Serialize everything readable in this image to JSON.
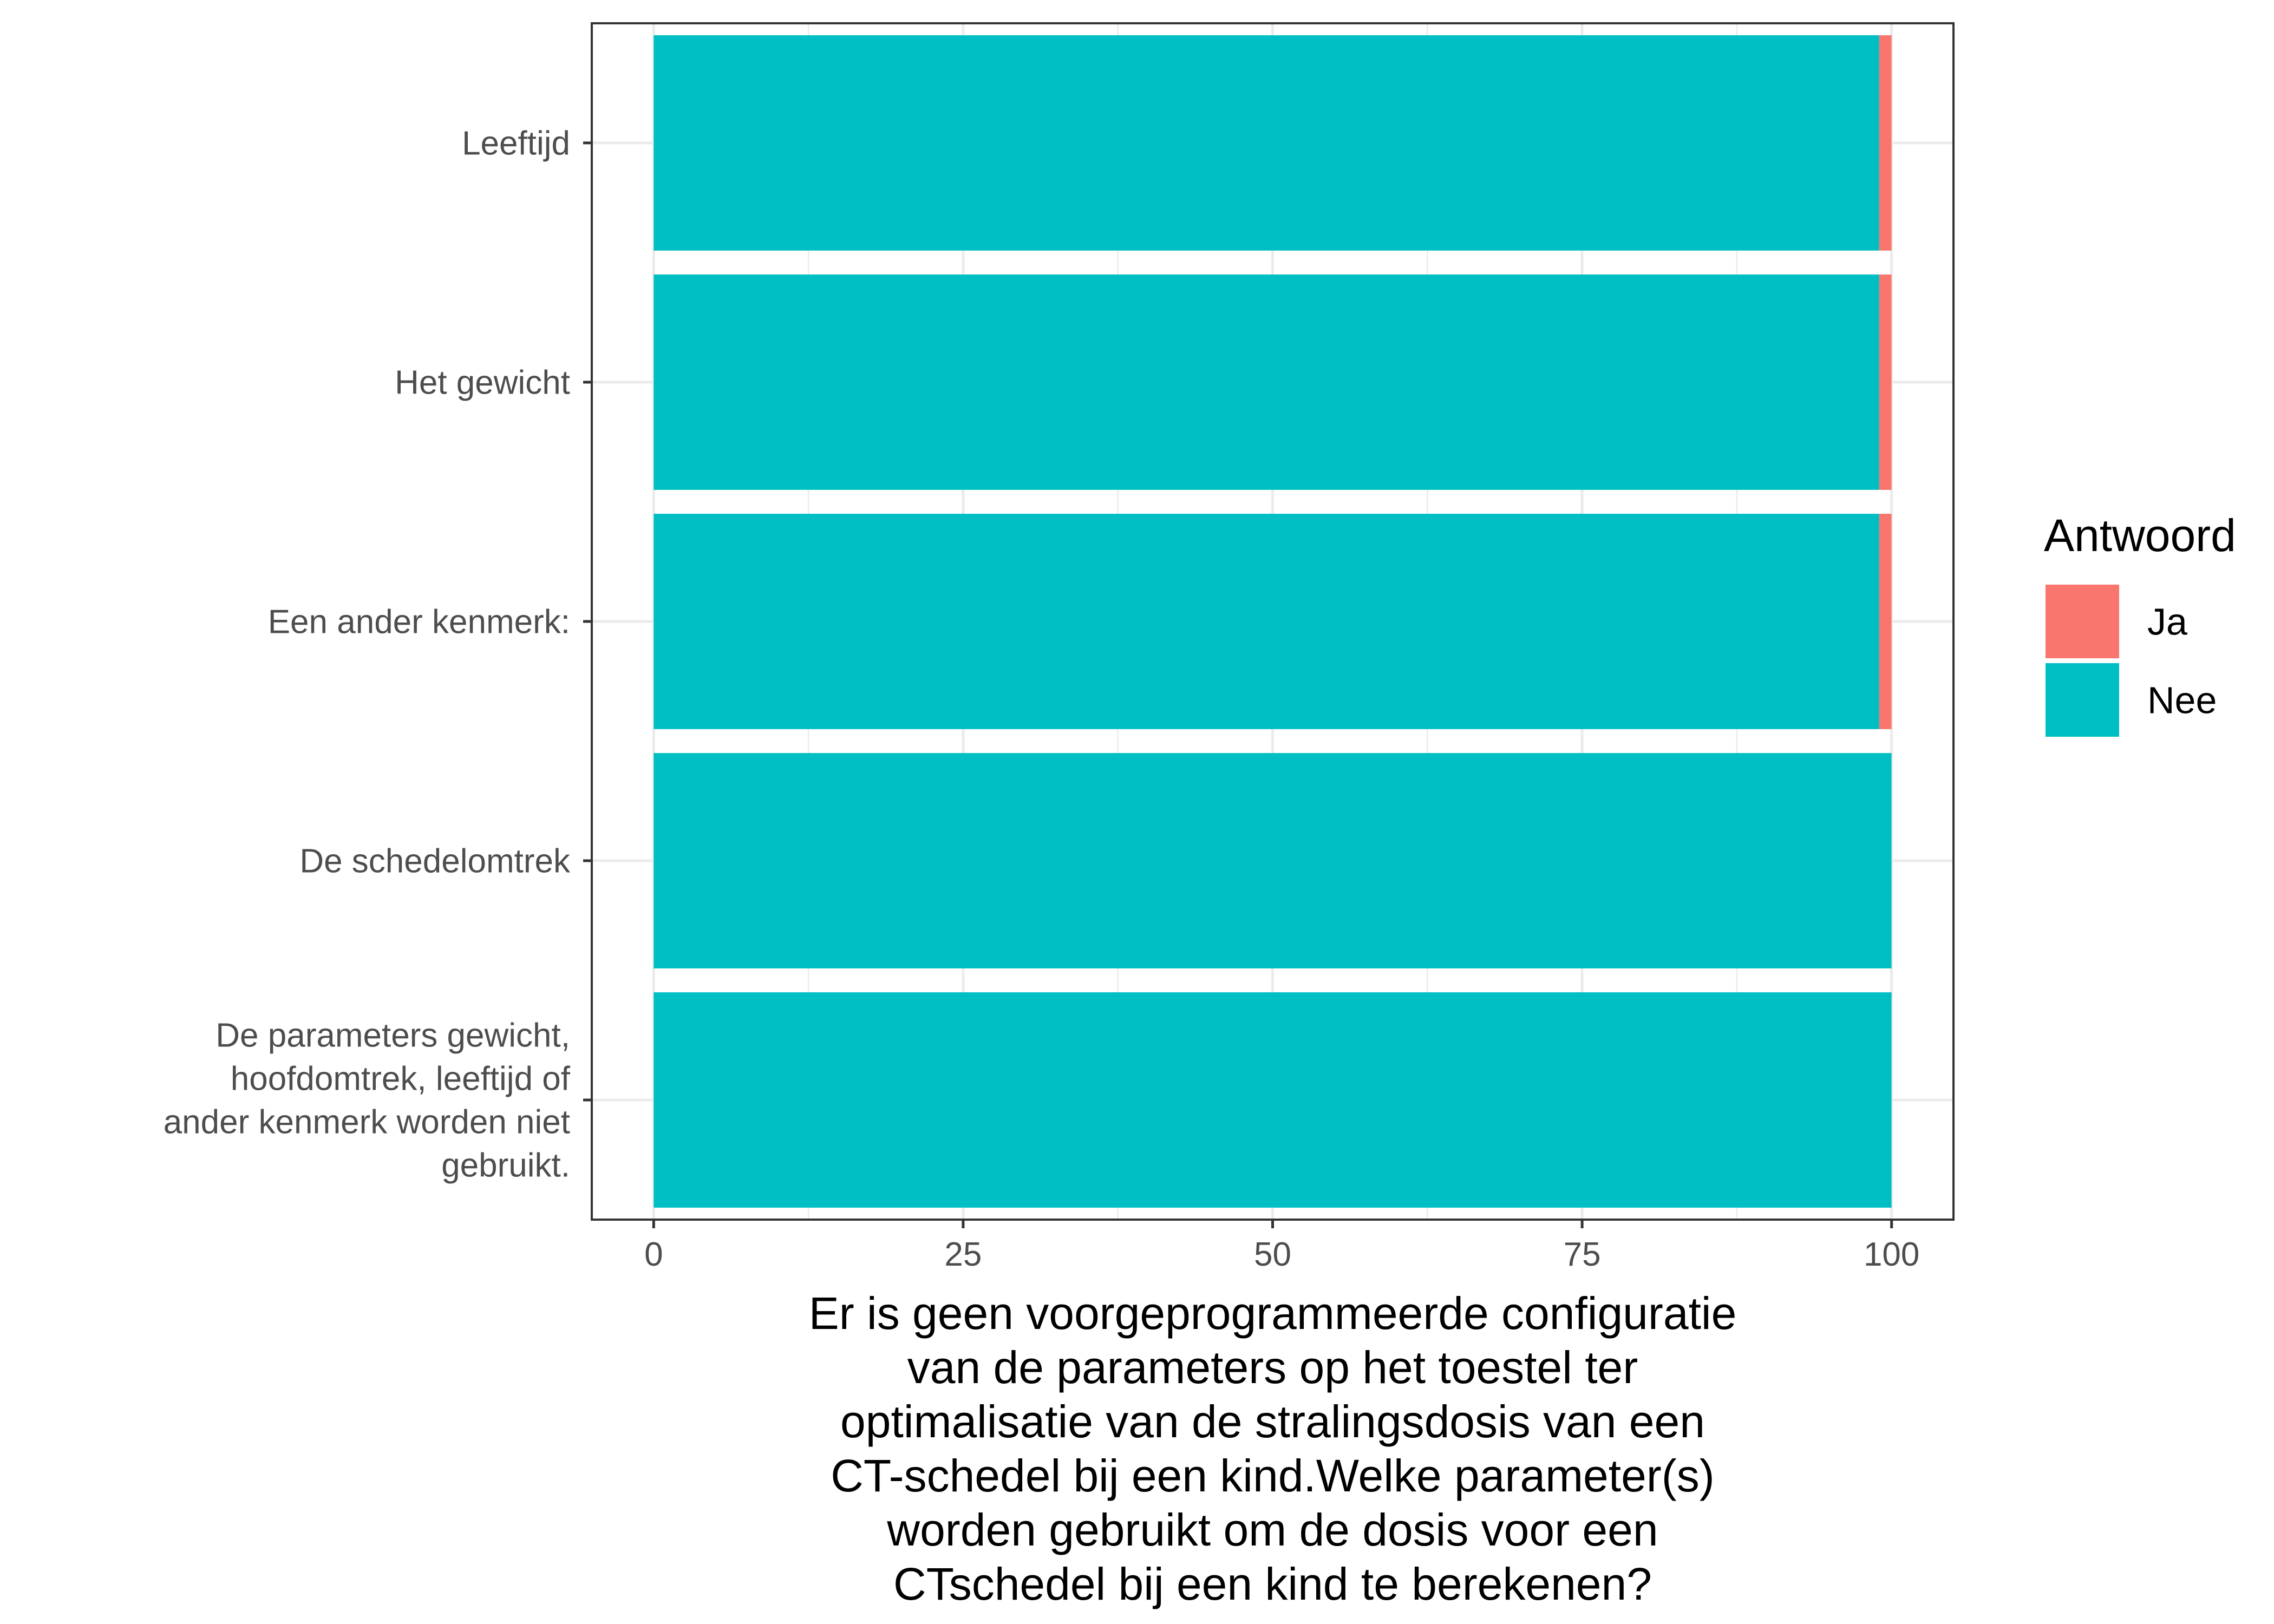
{
  "chart_data": {
    "type": "bar",
    "orientation": "horizontal",
    "stacked": true,
    "categories": [
      "Leeftijd",
      "Het gewicht",
      "Een ander kenmerk:",
      "De schedelomtrek",
      "De parameters gewicht, hoofdomtrek, leeftijd of ander kenmerk worden niet gebruikt."
    ],
    "category_label_lines": [
      [
        "Leeftijd"
      ],
      [
        "Het gewicht"
      ],
      [
        "Een ander kenmerk:"
      ],
      [
        "De schedelomtrek"
      ],
      [
        "De parameters gewicht,",
        "hoofdomtrek, leeftijd of",
        "ander kenmerk worden niet",
        "gebruikt."
      ]
    ],
    "series": [
      {
        "name": "Nee",
        "color": "#00BFC4",
        "values": [
          99,
          99,
          99,
          100,
          100
        ]
      },
      {
        "name": "Ja",
        "color": "#F8766D",
        "values": [
          1,
          1,
          1,
          0,
          0
        ]
      }
    ],
    "xlim": [
      -5,
      105
    ],
    "xticks": [
      0,
      25,
      50,
      75,
      100
    ],
    "xtick_labels": [
      "0",
      "25",
      "50",
      "75",
      "100"
    ],
    "xlabel": "Er is geen voorgeprogrammeerde configuratie van de parameters op het toestel ter optimalisatie van de stralingsdosis van een CT-schedel bij een kind.Welke parameter(s) worden gebruikt om de dosis voor een CTschedel bij een kind te berekenen?",
    "xlabel_lines": [
      "Er is geen voorgeprogrammeerde configuratie",
      "van de parameters op het toestel ter",
      "optimalisatie van de stralingsdosis van een",
      "CT-schedel bij een kind.Welke parameter(s)",
      "worden gebruikt om de dosis voor een",
      "CTschedel bij een kind te berekenen?"
    ],
    "ylabel": "",
    "grid": true,
    "legend": {
      "title": "Antwoord",
      "position": "right",
      "entries": [
        {
          "label": "Ja",
          "color": "#F8766D"
        },
        {
          "label": "Nee",
          "color": "#00BFC4"
        }
      ]
    }
  }
}
